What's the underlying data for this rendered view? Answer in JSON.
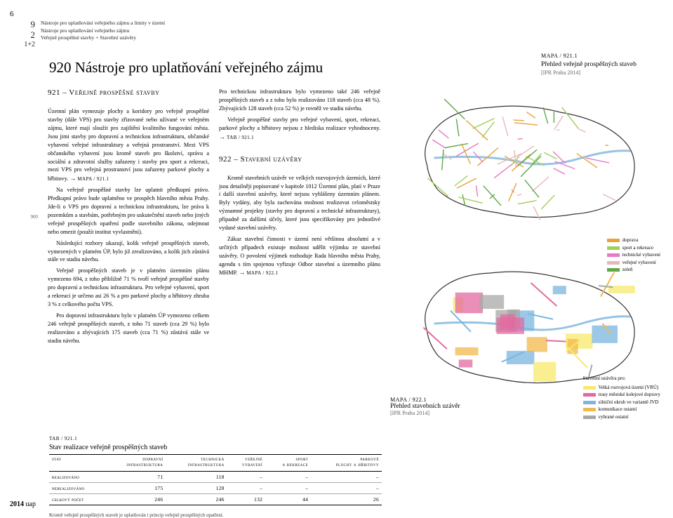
{
  "header": {
    "page_left": "6",
    "code_a": "9",
    "code_b": "2",
    "code_c": "1+2",
    "bc1": "Nástroje pro uplatňování veřejného zájmu a limity v území",
    "bc2": "Nástroje pro uplatňování veřejného zájmu",
    "bc3": "Veřejně prospěšné stavby + Stavební uzávěry"
  },
  "title": "920 Nástroje pro uplatňování veřejného zájmu",
  "map1": {
    "ref": "MAPA / 921.1",
    "title": "Přehled veřejně prospěšných staveb",
    "src": "[IPR Praha 2014]"
  },
  "map2": {
    "ref": "MAPA / 922.1",
    "title": "Přehled stavebních uzávěr",
    "src": "[IPR Praha 2014]"
  },
  "margin_pg": "900",
  "sec921": {
    "h": "921 – Veřejně prospěšné stavby",
    "p1": "Územní plán vymezuje plochy a koridory pro veřejně prospěšné stavby (dále VPS) pro stavby zřizované nebo užívané ve veřejném zájmu, které mají sloužit pro zajištění kvalitního fungování města. Jsou jimi stavby pro dopravní a technickou infrastrukturu, občanské vybavení veřejné infrastruktury a veřejná prostranství. Mezi VPS občanského vybavení jsou kromě staveb pro školství, správu a sociální a zdravotní služby zařazeny i stavby pro sport a rekreaci, mezi VPS pro veřejná prostranství jsou zařazeny parkové plochy a hřbitovy.",
    "ref1": "MAPA / 921.1",
    "p2": "Na veřejně prospěšné stavby lze uplatnit předkupní právo. Předkupní právo bude uplatněno ve prospěch hlavního města Prahy. Jde-li o VPS pro dopravní a technickou infrastrukturu, lze práva k pozemkům a stavbám, potřebným pro uskutečnění staveb nebo jiných veřejně prospěšných opatření podle stavebního zákona, odejmout nebo omezit (použít institut vyvlastnění).",
    "p3": "Následující rozbory ukazují, kolik veřejně prospěšných staveb, vymezených v platném ÚP, bylo již zrealizováno, a kolik jich zůstává stále ve stadiu návrhu.",
    "p4": "Veřejně prospěšných staveb je v platném územním plánu vymezeno 694, z toho přibližně 71 % tvoří veřejně prospěšné stavby pro dopravní a technickou infrastrukturu. Pro veřejné vybavení, sport a rekreaci je určeno asi 26 % a pro parkové plochy a hřbitovy zhruba 3 % z celkového počtu VPS.",
    "p5": "Pro dopravní infrastrukturu bylo v platném ÚP vymezeno celkem 246 veřejně prospěšných staveb, z toho 71 staveb (cca 29 %) bylo realizováno a zbývajících 175 staveb (cca 71 %) zůstává stále ve stadiu návrhu."
  },
  "col2": {
    "p1": "Pro technickou infrastrukturu bylo vymezeno také 246 veřejně prospěšných staveb a z toho bylo realizováno 118 staveb (cca 48 %). Zbývajících 128 staveb (cca 52 %) je rovněž ve stadiu návrhu.",
    "p2": "Veřejně prospěšné stavby pro veřejné vybavení, sport, rekreaci, parkové plochy a hřbitovy nejsou z hlediska realizace vyhodnoceny.",
    "ref2": "TAB / 921.1",
    "h": "922 – Stavební uzávěry",
    "p3": "Kromě stavebních uzávěr ve velkých rozvojových územích, které jsou detailněji popisované v kapitole 1012 Územní plán, platí v Praze i další stavební uzávěry, které nejsou vyhlášeny územním plánem. Byly vydány, aby byla zachována možnost realizovat celoměstsky významné projekty (stavby pro dopravní a technické infrastruktury), případně za dalšími účely, které jsou specifikovány pro jednotlivé vydané stavební uzávěry.",
    "p4": "Zákaz stavební činnosti v území není většinou absolutní a v určitých případech existuje možnost udělit výjimku ze stavební uzávěry. O povolení výjimek rozhoduje Rada hlavního města Prahy, agendu s tím spojenou vyřizuje Odbor stavební a územního plánu MHMP.",
    "ref3": "MAPA / 922.1"
  },
  "legend1": {
    "items": [
      {
        "color": "#e8a23a",
        "label": "doprava"
      },
      {
        "color": "#9ed05a",
        "label": "sport a rekreace"
      },
      {
        "color": "#e879c4",
        "label": "technické vybavení"
      },
      {
        "color": "#e8b8b8",
        "label": "veřejné vybavení"
      },
      {
        "color": "#5fa84a",
        "label": "zeleň"
      }
    ]
  },
  "legend2": {
    "title": "Stavební uzávěra pro:",
    "items": [
      {
        "color": "#f7e96b",
        "label": "Velká rozvojová území (VRÚ)"
      },
      {
        "color": "#e36aa0",
        "label": "trasy městské kolejové dopravy"
      },
      {
        "color": "#7bb6e0",
        "label": "silniční okruh ve variantě JVD"
      },
      {
        "color": "#f2b84b",
        "label": "komunikace ostatní"
      },
      {
        "color": "#a8a8a8",
        "label": "vybrané ostatní"
      }
    ]
  },
  "table": {
    "ref": "TAB / 921.1",
    "title": "Stav realizace veřejně prospěšných staveb",
    "cols": [
      "stav",
      "dopravní infrastruktura",
      "technická infrastruktura",
      "veřejné vybavení",
      "sport a rekreace",
      "parkové plochy a hřbitovy"
    ],
    "rows": [
      [
        "realizováno",
        "71",
        "118",
        "–",
        "–",
        "–"
      ],
      [
        "nerealizováno",
        "175",
        "128",
        "–",
        "–",
        "–"
      ],
      [
        "celkový počet",
        "246",
        "246",
        "132",
        "44",
        "26"
      ]
    ]
  },
  "footnote": "Kromě veřejně prospěšných staveb je uplatňován i princip veřejně prospěšných opatření.",
  "year": "2014",
  "year_suffix": "uap",
  "map_style": {
    "outline": "#333333",
    "river": "#6aa9d8",
    "m1_colors": [
      "#e8a23a",
      "#e879c4",
      "#9ed05a",
      "#5fa84a",
      "#e8b8b8"
    ],
    "m2_colors": [
      "#f7e96b",
      "#e36aa0",
      "#7bb6e0",
      "#f2b84b",
      "#a8a8a8"
    ]
  }
}
